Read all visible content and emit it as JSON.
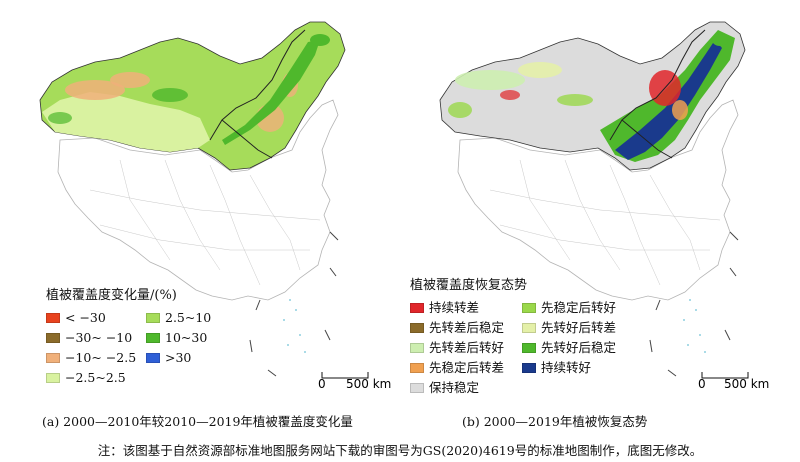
{
  "panel_a": {
    "legend_title": "植被覆盖度变化量/(%)",
    "legend_items": [
      {
        "label": "< −30",
        "color": "#e8431e"
      },
      {
        "label": "2.5~10",
        "color": "#a6dc5a"
      },
      {
        "label": "−30~ −10",
        "color": "#8b6b2a"
      },
      {
        "label": "10~30",
        "color": "#4fb82c"
      },
      {
        "label": "−10~ −2.5",
        "color": "#f0b07a"
      },
      {
        "label": ">30",
        "color": "#2f5fd6"
      },
      {
        "label": "−2.5~2.5",
        "color": "#d9f2a0"
      }
    ],
    "scale_zero": "0",
    "scale_label": "500 km",
    "caption": "(a) 2000—2010年较2010—2019年植被覆盖度变化量"
  },
  "panel_b": {
    "legend_title": "植被覆盖度恢复态势",
    "legend_items": [
      {
        "label": "持续转差",
        "color": "#e0262a"
      },
      {
        "label": "先稳定后转好",
        "color": "#9ad84a"
      },
      {
        "label": "先转差后稳定",
        "color": "#8b6b2a"
      },
      {
        "label": "先转好后转差",
        "color": "#e4f0a8"
      },
      {
        "label": "先转差后转好",
        "color": "#cdeeb0"
      },
      {
        "label": "先转好后稳定",
        "color": "#4fb82c"
      },
      {
        "label": "先稳定后转差",
        "color": "#f0a050"
      },
      {
        "label": "持续转好",
        "color": "#1a3a8c"
      },
      {
        "label": "保持稳定",
        "color": "#dcdcdc"
      }
    ],
    "scale_zero": "0",
    "scale_label": "500 km",
    "caption": "(b) 2000—2019年植被恢复态势"
  },
  "note": "注：该图基于自然资源部标准地图服务网站下载的审图号为GS(2020)4619号的标准地图制作，底图无修改。"
}
